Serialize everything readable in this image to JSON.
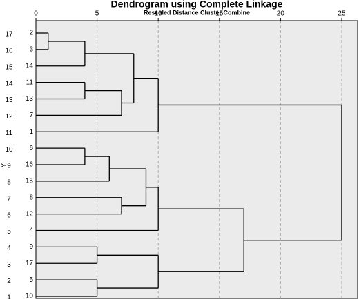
{
  "chart_data": {
    "type": "dendrogram",
    "title": "Dendrogram using Complete Linkage",
    "subtitle": "Rescaled Distance Cluster Combine",
    "y_label": "Y",
    "y_labels": [
      "17",
      "16",
      "15",
      "14",
      "13",
      "12",
      "11",
      "10",
      "9",
      "8",
      "7",
      "6",
      "5",
      "4",
      "3",
      "2",
      "1"
    ],
    "xlim": [
      0,
      26.3
    ],
    "xticks": [
      0,
      5,
      10,
      15,
      20,
      25
    ],
    "grid": true,
    "tree": {
      "distance": 25,
      "children": [
        {
          "distance": 10,
          "children": [
            {
              "distance": 8,
              "children": [
                {
                  "distance": 4,
                  "children": [
                    {
                      "distance": 1,
                      "children": [
                        {
                          "label": "2"
                        },
                        {
                          "label": "3"
                        }
                      ]
                    },
                    {
                      "label": "14"
                    }
                  ]
                },
                {
                  "distance": 7,
                  "children": [
                    {
                      "distance": 4,
                      "children": [
                        {
                          "label": "11"
                        },
                        {
                          "label": "13"
                        }
                      ]
                    },
                    {
                      "label": "7"
                    }
                  ]
                }
              ]
            },
            {
              "label": "1"
            }
          ]
        },
        {
          "distance": 17,
          "children": [
            {
              "distance": 10,
              "children": [
                {
                  "distance": 9,
                  "children": [
                    {
                      "distance": 6,
                      "children": [
                        {
                          "distance": 4,
                          "children": [
                            {
                              "label": "6"
                            },
                            {
                              "label": "16"
                            }
                          ]
                        },
                        {
                          "label": "15"
                        }
                      ]
                    },
                    {
                      "distance": 7,
                      "children": [
                        {
                          "label": "8"
                        },
                        {
                          "label": "12"
                        }
                      ]
                    }
                  ]
                },
                {
                  "label": "4"
                }
              ]
            },
            {
              "distance": 10,
              "children": [
                {
                  "distance": 5,
                  "children": [
                    {
                      "label": "9"
                    },
                    {
                      "label": "17"
                    }
                  ]
                },
                {
                  "distance": 5,
                  "children": [
                    {
                      "label": "5"
                    },
                    {
                      "label": "10"
                    }
                  ]
                }
              ]
            }
          ]
        }
      ]
    }
  }
}
